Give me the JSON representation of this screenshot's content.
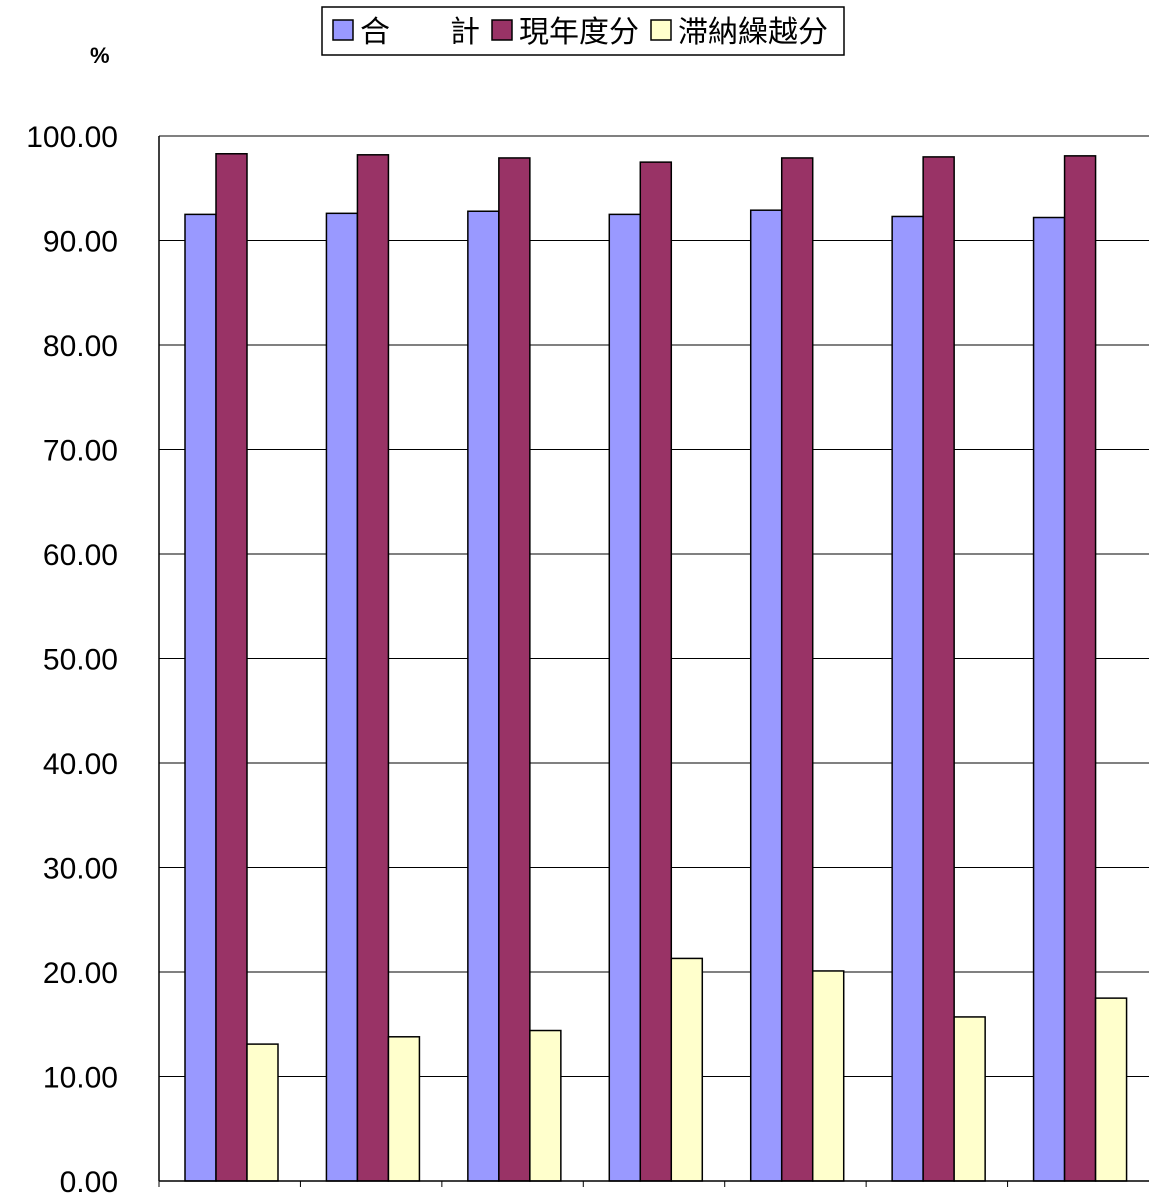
{
  "chart_data": {
    "type": "bar",
    "unit_label": "%",
    "categories": [
      "",
      "",
      "",
      "",
      "",
      "",
      ""
    ],
    "series": [
      {
        "name": "合　　計",
        "color": "#9999ff",
        "values": [
          92.5,
          92.6,
          92.8,
          92.5,
          92.9,
          92.3,
          92.2
        ]
      },
      {
        "name": "現年度分",
        "color": "#993366",
        "values": [
          98.3,
          98.2,
          97.9,
          97.5,
          97.9,
          98.0,
          98.1
        ]
      },
      {
        "name": "滞納繰越分",
        "color": "#ffffcc",
        "values": [
          13.1,
          13.8,
          14.4,
          21.3,
          20.1,
          15.7,
          17.5
        ]
      }
    ],
    "ylim": [
      0,
      100
    ],
    "y_ticks": [
      "0.00",
      "10.00",
      "20.00",
      "30.00",
      "40.00",
      "50.00",
      "60.00",
      "70.00",
      "80.00",
      "90.00",
      "100.00"
    ],
    "grid": true,
    "legend_position": "top"
  }
}
